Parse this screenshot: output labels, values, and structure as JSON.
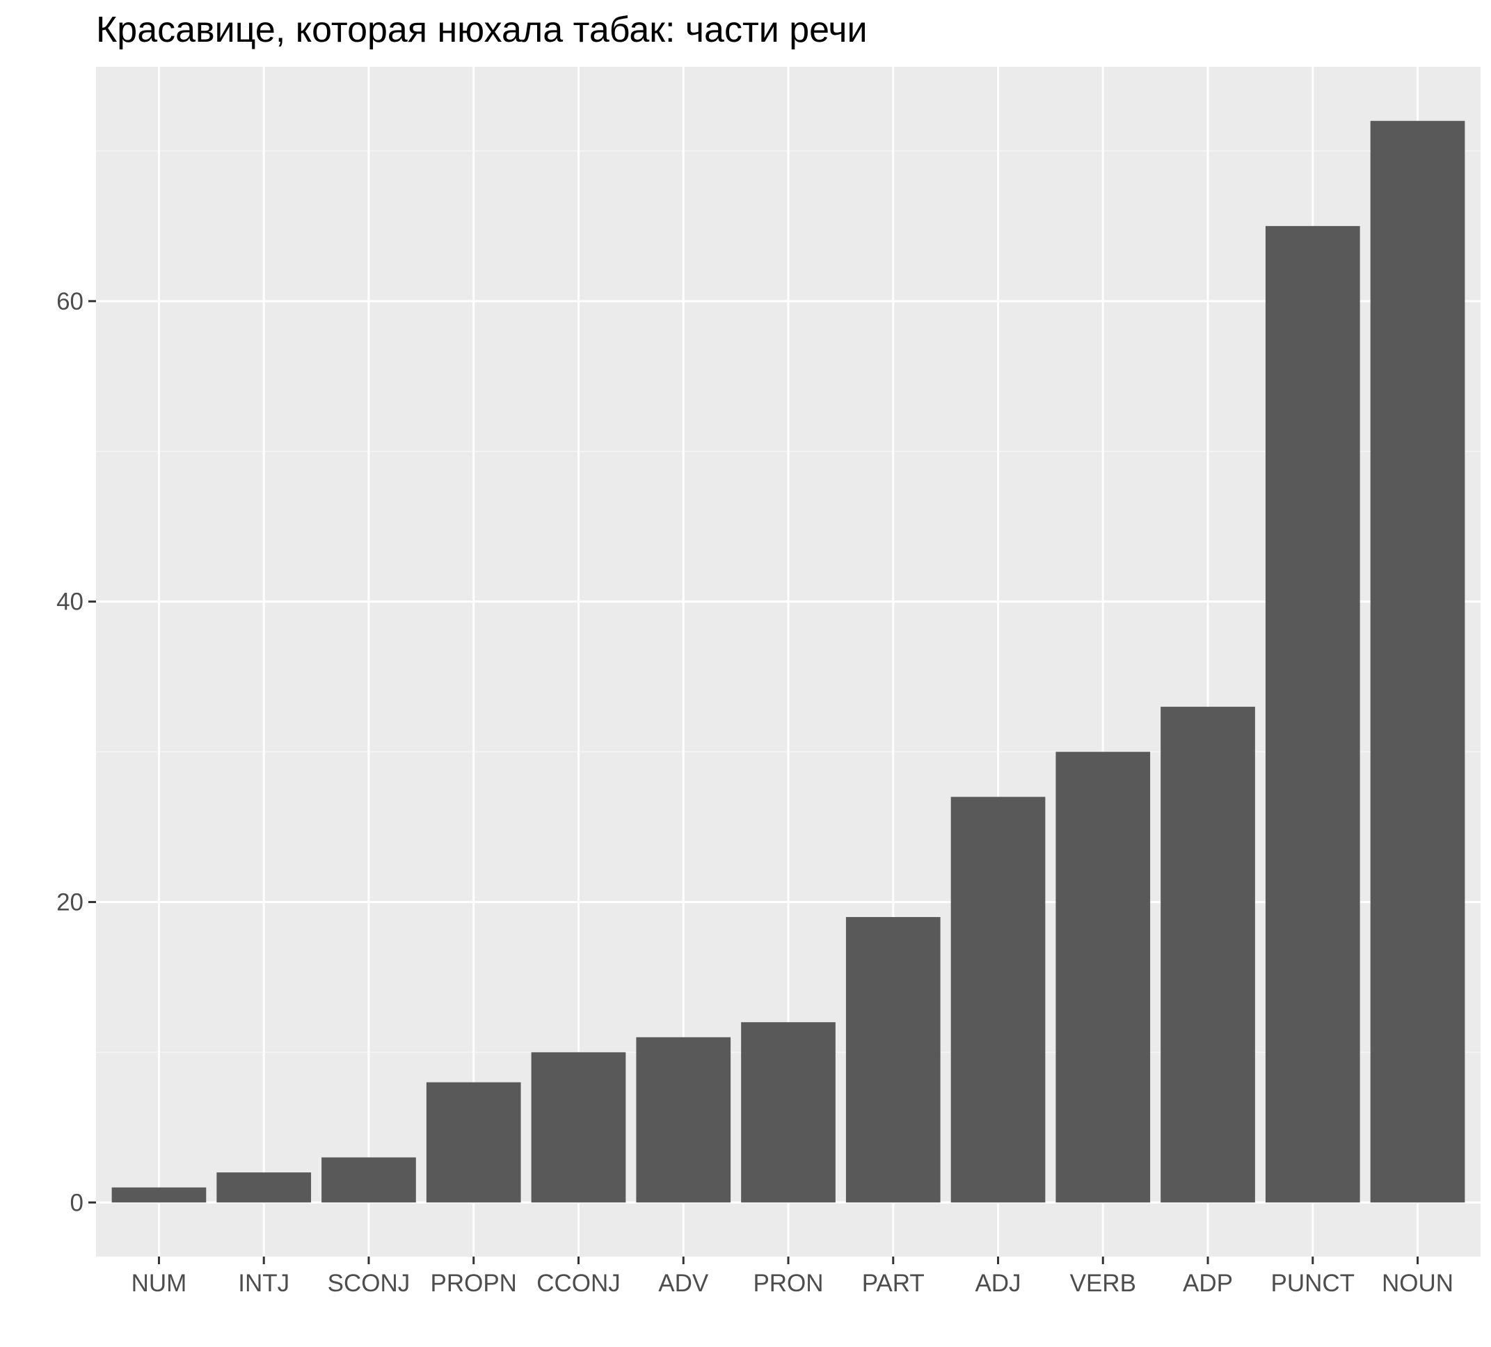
{
  "chart_data": {
    "type": "bar",
    "title": "Красавице, которая нюхала табак: части речи",
    "xlabel": "",
    "ylabel": "",
    "categories": [
      "NUM",
      "INTJ",
      "SCONJ",
      "PROPN",
      "CCONJ",
      "ADV",
      "PRON",
      "PART",
      "ADJ",
      "VERB",
      "ADP",
      "PUNCT",
      "NOUN"
    ],
    "values": [
      1,
      2,
      3,
      8,
      10,
      11,
      12,
      19,
      27,
      30,
      33,
      65,
      72
    ],
    "ylim": [
      -3.6,
      75.6
    ],
    "y_ticks": [
      0,
      20,
      40,
      60
    ],
    "y_tick_labels": [
      "0",
      "20",
      "40",
      "60"
    ],
    "grid": true,
    "legend": "none",
    "colors": {
      "panel_background": "#EBEBEB",
      "grid_major": "#FFFFFF",
      "grid_minor": "#F5F5F5",
      "bar_fill": "#595959",
      "tick_mark": "#333333",
      "tick_text": "#4D4D4D",
      "title_text": "#000000"
    }
  }
}
